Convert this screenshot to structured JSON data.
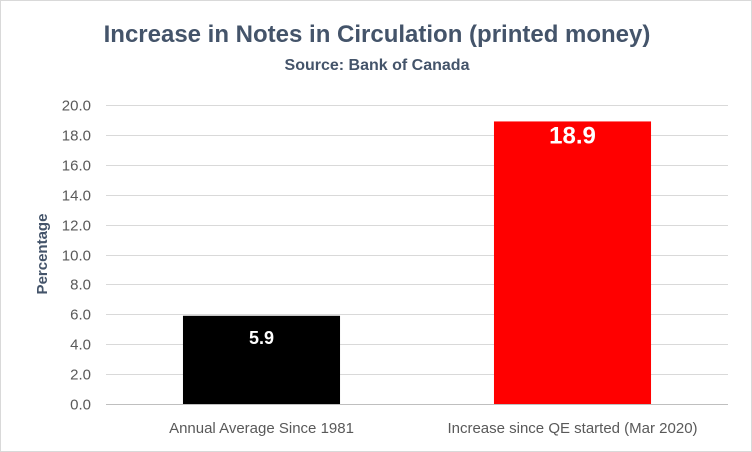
{
  "chart_data": {
    "type": "bar",
    "title": "Increase in Notes in Circulation (printed money)",
    "subtitle": "Source: Bank of Canada",
    "xlabel": "",
    "ylabel": "Percentage",
    "categories": [
      "Annual Average Since 1981",
      "Increase since QE started (Mar 2020)"
    ],
    "values": [
      5.9,
      18.9
    ],
    "data_labels": [
      "5.9",
      "18.9"
    ],
    "bar_colors": [
      "#000000",
      "#ff0000"
    ],
    "ylim": [
      0,
      20
    ],
    "yticks": [
      0,
      2,
      4,
      6,
      8,
      10,
      12,
      14,
      16,
      18,
      20
    ],
    "ytick_labels": [
      "0.0",
      "2.0",
      "4.0",
      "6.0",
      "8.0",
      "10.0",
      "12.0",
      "14.0",
      "16.0",
      "18.0",
      "20.0"
    ],
    "grid": true,
    "legend": "none"
  }
}
